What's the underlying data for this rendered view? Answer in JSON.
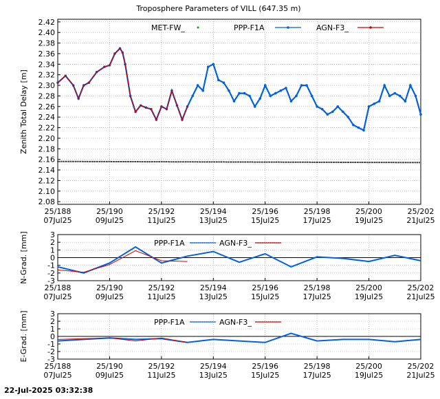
{
  "title": "Troposphere Parameters of VILL (647.35 m)",
  "footer_timestamp": "22-Jul-2025 03:32:38",
  "colors": {
    "met": "#00aa00",
    "ppp": "#0060e0",
    "agn": "#cc0000",
    "frame": "#000000",
    "grid": "#999999"
  },
  "x_ticks": [
    {
      "doy": "25/188",
      "date": "07Jul25"
    },
    {
      "doy": "25/190",
      "date": "09Jul25"
    },
    {
      "doy": "25/192",
      "date": "11Jul25"
    },
    {
      "doy": "25/194",
      "date": "13Jul25"
    },
    {
      "doy": "25/196",
      "date": "15Jul25"
    },
    {
      "doy": "25/198",
      "date": "17Jul25"
    },
    {
      "doy": "25/200",
      "date": "19Jul25"
    },
    {
      "doy": "25/202",
      "date": "21Jul25"
    }
  ],
  "chart_data": [
    {
      "type": "scatter",
      "name": "ztd",
      "ylabel": "Zenith Total Delay [m]",
      "xlim": [
        188,
        202
      ],
      "ylim": [
        2.075,
        2.425
      ],
      "yticks": [
        "2.08",
        "2.10",
        "2.12",
        "2.14",
        "2.16",
        "2.18",
        "2.20",
        "2.22",
        "2.24",
        "2.26",
        "2.28",
        "2.30",
        "2.32",
        "2.34",
        "2.36",
        "2.38",
        "2.40",
        "2.42"
      ],
      "legend": [
        "MET-FW_",
        "PPP-F1A",
        "AGN-F3_"
      ],
      "series": [
        {
          "name": "MET-FW_",
          "x": [
            188.0,
            202.0
          ],
          "y": [
            2.156,
            2.154
          ]
        },
        {
          "name": "PPP-F1A",
          "x": [
            188.0,
            188.3,
            188.6,
            188.8,
            189.0,
            189.2,
            189.5,
            189.8,
            190.0,
            190.2,
            190.4,
            190.5,
            190.6,
            190.8,
            191.0,
            191.2,
            191.4,
            191.6,
            191.8,
            192.0,
            192.2,
            192.4,
            192.6,
            192.8,
            193.0,
            193.2,
            193.4,
            193.6,
            193.8,
            194.0,
            194.2,
            194.4,
            194.6,
            194.8,
            195.0,
            195.2,
            195.4,
            195.6,
            195.8,
            196.0,
            196.2,
            196.4,
            196.6,
            196.8,
            197.0,
            197.2,
            197.4,
            197.6,
            197.8,
            198.0,
            198.2,
            198.4,
            198.6,
            198.8,
            199.0,
            199.2,
            199.4,
            199.6,
            199.8,
            200.0,
            200.2,
            200.4,
            200.6,
            200.8,
            201.0,
            201.2,
            201.4,
            201.6,
            201.8,
            202.0
          ],
          "y": [
            2.305,
            2.318,
            2.3,
            2.275,
            2.3,
            2.305,
            2.325,
            2.335,
            2.338,
            2.36,
            2.37,
            2.362,
            2.34,
            2.28,
            2.25,
            2.262,
            2.258,
            2.255,
            2.235,
            2.26,
            2.255,
            2.29,
            2.262,
            2.235,
            2.26,
            2.28,
            2.3,
            2.29,
            2.335,
            2.34,
            2.31,
            2.305,
            2.29,
            2.27,
            2.285,
            2.285,
            2.28,
            2.26,
            2.275,
            2.3,
            2.28,
            2.285,
            2.29,
            2.295,
            2.27,
            2.28,
            2.3,
            2.3,
            2.28,
            2.26,
            2.255,
            2.245,
            2.25,
            2.26,
            2.25,
            2.24,
            2.225,
            2.22,
            2.215,
            2.26,
            2.265,
            2.27,
            2.3,
            2.28,
            2.285,
            2.28,
            2.27,
            2.3,
            2.28,
            2.245
          ]
        },
        {
          "name": "AGN-F3_",
          "x": [
            188.0,
            188.3,
            188.6,
            188.8,
            189.0,
            189.2,
            189.5,
            189.8,
            190.0,
            190.2,
            190.4,
            190.5,
            190.6,
            190.8,
            191.0,
            191.2,
            191.4,
            191.6,
            191.8,
            192.0,
            192.2,
            192.4,
            192.6,
            192.8,
            193.0
          ],
          "y": [
            2.305,
            2.318,
            2.3,
            2.275,
            2.3,
            2.305,
            2.325,
            2.335,
            2.338,
            2.36,
            2.37,
            2.362,
            2.34,
            2.28,
            2.25,
            2.262,
            2.258,
            2.255,
            2.235,
            2.26,
            2.255,
            2.29,
            2.262,
            2.235,
            2.26
          ]
        }
      ]
    },
    {
      "type": "line",
      "name": "ngrad",
      "ylabel": "N-Grad. [mm]",
      "xlim": [
        188,
        202
      ],
      "ylim": [
        -3,
        3
      ],
      "yticks": [
        "-3",
        "-2",
        "-1",
        "0",
        "1",
        "2",
        "3"
      ],
      "legend": [
        "PPP-F1A",
        "AGN-F3_"
      ],
      "series": [
        {
          "name": "PPP-F1A",
          "x": [
            188,
            189,
            190,
            191,
            192,
            193,
            194,
            195,
            196,
            197,
            198,
            199,
            200,
            201,
            202
          ],
          "y": [
            -1.2,
            -2.0,
            -0.7,
            1.4,
            -0.7,
            0.2,
            0.8,
            -0.6,
            0.5,
            -1.2,
            0.1,
            -0.1,
            -0.5,
            0.3,
            -0.4
          ]
        },
        {
          "name": "AGN-F3_",
          "x": [
            188,
            189,
            190,
            191,
            192,
            193
          ],
          "y": [
            -1.6,
            -1.9,
            -0.9,
            0.9,
            -0.4,
            -0.5
          ]
        }
      ]
    },
    {
      "type": "line",
      "name": "egrad",
      "ylabel": "E-Grad. [mm]",
      "xlim": [
        188,
        202
      ],
      "ylim": [
        -3,
        3
      ],
      "yticks": [
        "-3",
        "-2",
        "-1",
        "0",
        "1",
        "2",
        "3"
      ],
      "legend": [
        "PPP-F1A",
        "AGN-F3_"
      ],
      "series": [
        {
          "name": "PPP-F1A",
          "x": [
            188,
            189,
            190,
            191,
            192,
            193,
            194,
            195,
            196,
            197,
            198,
            199,
            200,
            201,
            202
          ],
          "y": [
            -0.6,
            -0.4,
            -0.2,
            -0.4,
            -0.3,
            -0.8,
            -0.4,
            -0.6,
            -0.8,
            0.4,
            -0.6,
            -0.4,
            -0.4,
            -0.7,
            -0.4
          ]
        },
        {
          "name": "AGN-F3_",
          "x": [
            188,
            189,
            190,
            191,
            192,
            193
          ],
          "y": [
            -0.4,
            -0.3,
            -0.2,
            -0.6,
            -0.2,
            -0.8
          ]
        }
      ]
    }
  ]
}
